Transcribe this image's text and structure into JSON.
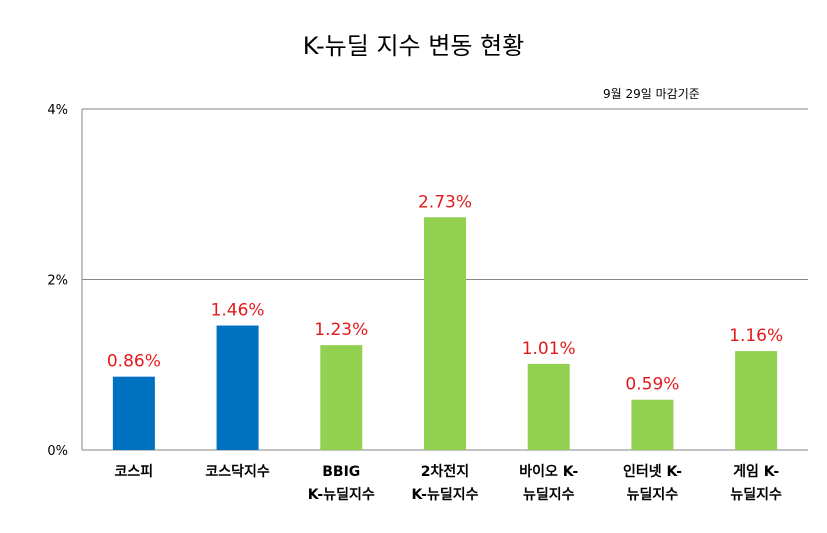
{
  "chart_data": {
    "type": "bar",
    "title": "K-뉴딜 지수 변동 현황",
    "note": "9월 29일 마감기준",
    "categories": [
      [
        "코스피"
      ],
      [
        "코스닥지수"
      ],
      [
        "BBIG",
        "K-뉴딜지수"
      ],
      [
        "2차전지",
        "K-뉴딜지수"
      ],
      [
        "바이오 K-",
        "뉴딜지수"
      ],
      [
        "인터넷 K-",
        "뉴딜지수"
      ],
      [
        "게임 K-",
        "뉴딜지수"
      ]
    ],
    "values": [
      0.86,
      1.46,
      1.23,
      2.73,
      1.01,
      0.59,
      1.16
    ],
    "data_labels": [
      "0.86%",
      "1.46%",
      "1.23%",
      "2.73%",
      "1.01%",
      "0.59%",
      "1.16%"
    ],
    "bar_colors": [
      "#0070c0",
      "#0070c0",
      "#92d050",
      "#92d050",
      "#92d050",
      "#92d050",
      "#92d050"
    ],
    "ylim": [
      0,
      4
    ],
    "yticks": [
      0,
      2,
      4
    ],
    "ytick_labels": [
      "0%",
      "2%",
      "4%"
    ],
    "grid": true,
    "label_color": "#e31a1c"
  }
}
